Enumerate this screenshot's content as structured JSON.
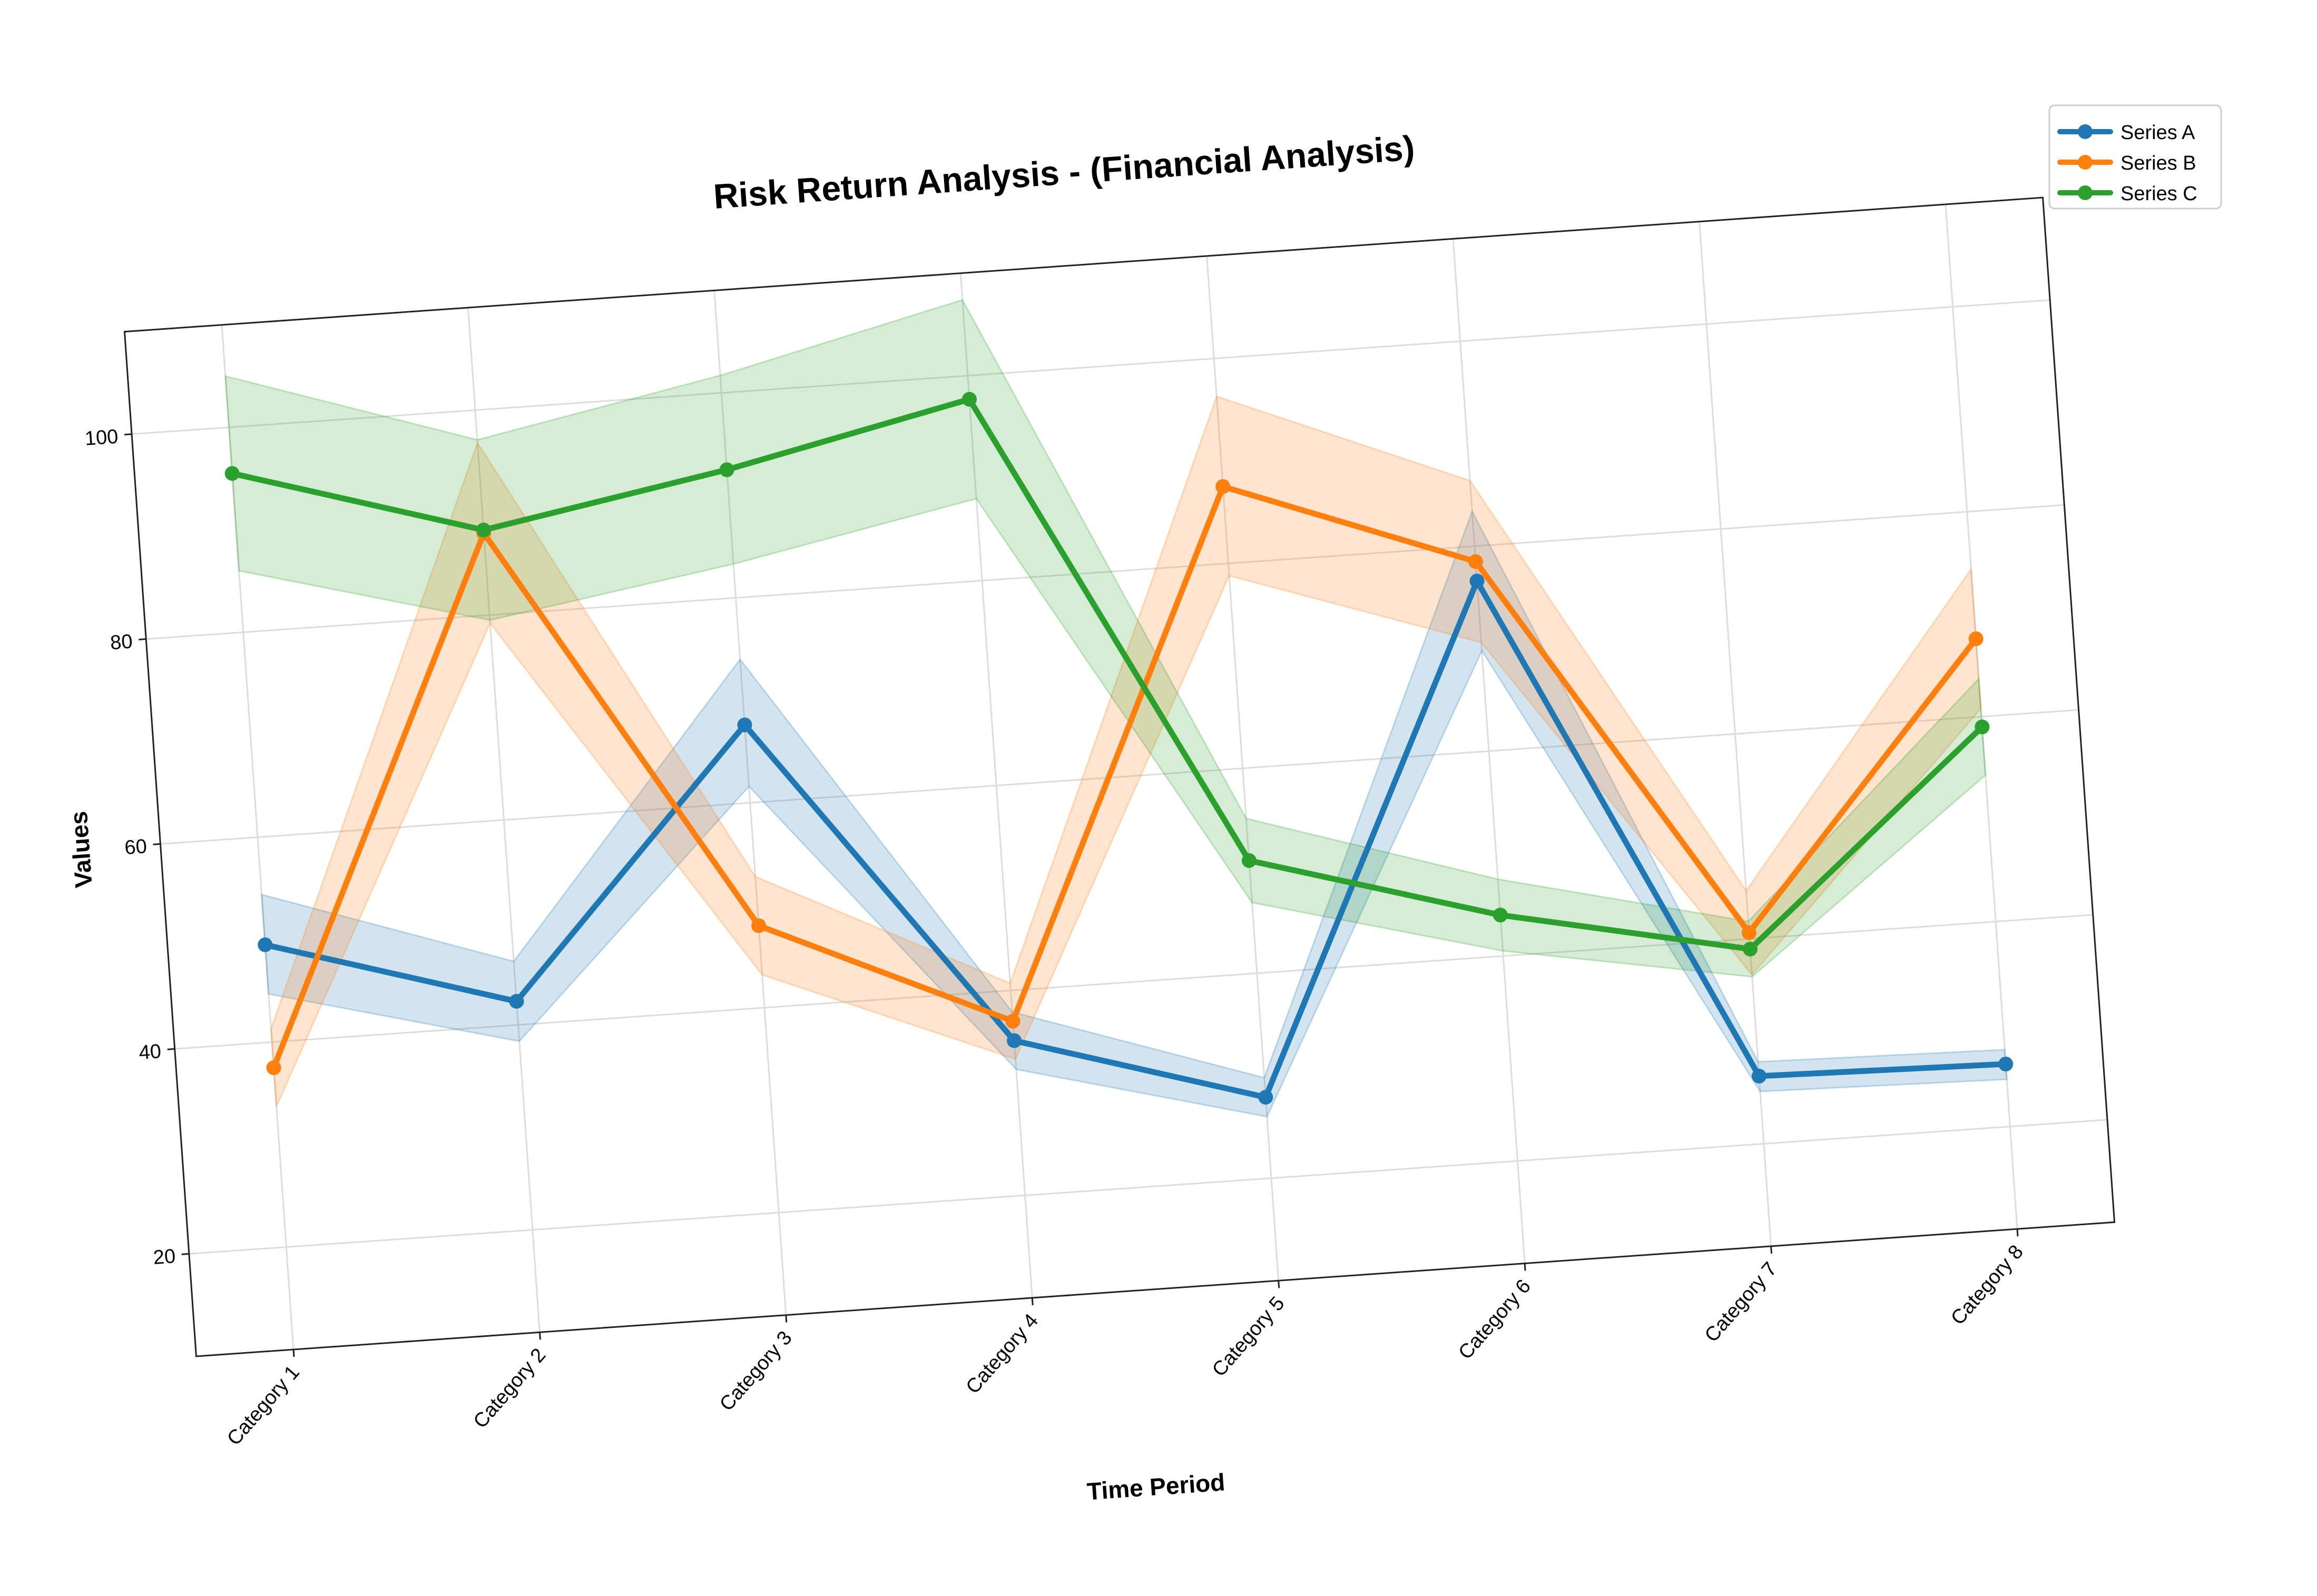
{
  "chart_data": {
    "type": "line",
    "title": "Risk Return Analysis - (Financial Analysis)",
    "xlabel": "Time Period",
    "ylabel": "Values",
    "categories": [
      "Category 1",
      "Category 2",
      "Category 3",
      "Category 4",
      "Category 5",
      "Category 6",
      "Category 7",
      "Category 8"
    ],
    "ylim": [
      10,
      110
    ],
    "yticks": [
      20,
      40,
      60,
      80,
      100
    ],
    "grid": true,
    "legend_position": "top-right",
    "series": [
      {
        "name": "Series A",
        "color": "#1f77b4",
        "values": [
          49.5,
          42.3,
          67.6,
          35.1,
          27.9,
          76.6,
          26.6,
          26.1
        ],
        "band_lower": [
          44.7,
          38.4,
          61.6,
          32.3,
          26.0,
          69.8,
          25.1,
          24.6
        ],
        "band_upper": [
          54.4,
          46.2,
          74.0,
          37.9,
          29.8,
          83.4,
          28.0,
          27.5
        ]
      },
      {
        "name": "Series B",
        "color": "#ff7f0e",
        "values": [
          37.5,
          88.0,
          48.0,
          37.0,
          87.5,
          78.5,
          40.6,
          67.6
        ],
        "band_lower": [
          33.7,
          79.2,
          43.2,
          33.3,
          78.8,
          70.6,
          36.5,
          60.8
        ],
        "band_upper": [
          41.3,
          96.8,
          52.8,
          40.7,
          96.3,
          86.4,
          44.7,
          74.4
        ]
      },
      {
        "name": "Series C",
        "color": "#2ca02c",
        "values": [
          95.5,
          88.3,
          92.5,
          97.7,
          51.0,
          44.0,
          39.0,
          59.0
        ],
        "band_lower": [
          86.0,
          79.5,
          83.3,
          88.0,
          46.9,
          40.5,
          36.3,
          54.3
        ],
        "band_upper": [
          105.0,
          97.1,
          101.7,
          107.4,
          55.1,
          47.5,
          41.7,
          63.7
        ]
      }
    ]
  }
}
